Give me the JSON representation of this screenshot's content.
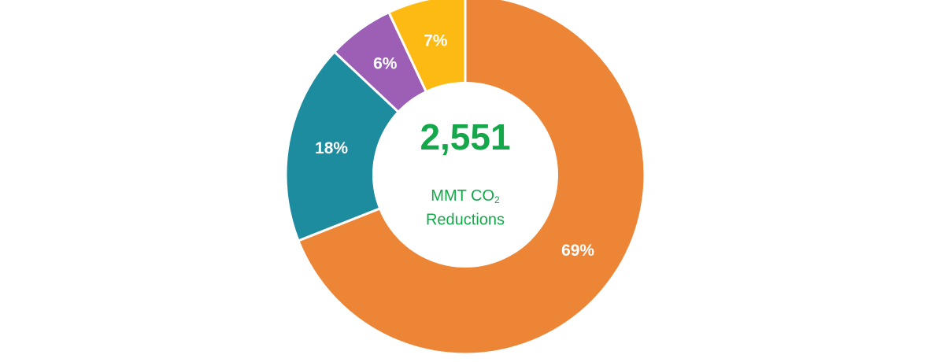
{
  "chart_data": {
    "type": "pie",
    "variant": "donut",
    "categories": [
      "",
      "",
      "",
      ""
    ],
    "values": [
      69,
      18,
      6,
      7
    ],
    "value_labels": [
      "69%",
      "18%",
      "6%",
      "7%"
    ],
    "colors": [
      "#ED8536",
      "#1E8C9F",
      "#9C5FB5",
      "#FDBA13"
    ],
    "center": {
      "total": "2,551",
      "caption_line1": "MMT CO",
      "caption_subscript": "2",
      "caption_line2": "Reductions",
      "color": "#14A84B"
    },
    "title": "",
    "legend": "none"
  }
}
